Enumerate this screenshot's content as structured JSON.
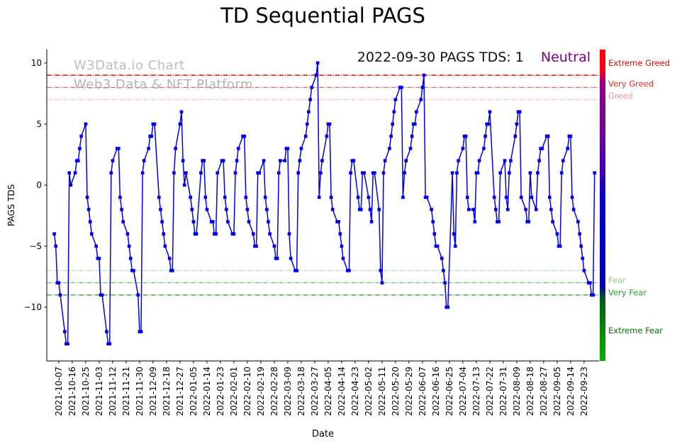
{
  "chart_data": {
    "type": "line",
    "title": "TD Sequential PAGS",
    "xlabel": "Date",
    "ylabel": "PAGS TDS",
    "annotation": {
      "text": "2022-09-30 PAGS TDS: 1",
      "sentiment": "Neutral",
      "sentiment_color": "#800080"
    },
    "watermark": {
      "line1": "W3Data.io Chart",
      "line2": "Web3 Data & NFT Platform"
    },
    "ylim": [
      -14.4,
      11.1
    ],
    "xlim": [
      "2021-09-29",
      "2022-10-03"
    ],
    "y_ticks": [
      -10,
      -5,
      0,
      5,
      10
    ],
    "x_tick_labels": [
      "2021-10-07",
      "2021-10-16",
      "2021-10-25",
      "2021-11-03",
      "2021-11-12",
      "2021-11-21",
      "2021-11-30",
      "2021-12-09",
      "2021-12-18",
      "2021-12-27",
      "2022-01-05",
      "2022-01-14",
      "2022-01-23",
      "2022-02-01",
      "2022-02-10",
      "2022-02-19",
      "2022-02-28",
      "2022-03-09",
      "2022-03-18",
      "2022-03-27",
      "2022-04-05",
      "2022-04-14",
      "2022-04-23",
      "2022-05-02",
      "2022-05-11",
      "2022-05-20",
      "2022-05-29",
      "2022-06-07",
      "2022-06-16",
      "2022-06-25",
      "2022-07-04",
      "2022-07-13",
      "2022-07-22",
      "2022-07-31",
      "2022-08-09",
      "2022-08-18",
      "2022-08-27",
      "2022-09-05",
      "2022-09-14",
      "2022-09-23"
    ],
    "series": {
      "name": "PAGS TDS",
      "color": "#0000ee",
      "marker": "square",
      "start_date": "2021-10-04",
      "frequency": "weekdays",
      "values": [
        -4,
        -5,
        -8,
        -8,
        -9,
        -12,
        -13,
        -13,
        1,
        0,
        1,
        2,
        2,
        3,
        4,
        5,
        -1,
        -2,
        -3,
        -4,
        -5,
        -6,
        -6,
        -9,
        -9,
        -12,
        -13,
        -13,
        1,
        2,
        3,
        3,
        -1,
        -2,
        -3,
        -4,
        -5,
        -6,
        -7,
        -7,
        -9,
        -12,
        -12,
        1,
        2,
        3,
        4,
        4,
        5,
        5,
        -1,
        -2,
        -3,
        -4,
        -5,
        -6,
        -7,
        -7,
        1,
        3,
        5,
        6,
        2,
        0,
        1,
        -1,
        -2,
        -3,
        -4,
        -4,
        1,
        2,
        2,
        -1,
        -2,
        -3,
        -3,
        -4,
        -4,
        1,
        2,
        2,
        -1,
        -2,
        -3,
        -4,
        -4,
        1,
        2,
        3,
        4,
        4,
        -1,
        -2,
        -3,
        -4,
        -5,
        -5,
        1,
        1,
        2,
        -1,
        -2,
        -3,
        -4,
        -5,
        -6,
        -6,
        1,
        2,
        2,
        3,
        3,
        -4,
        -6,
        -7,
        -7,
        1,
        2,
        3,
        4,
        5,
        6,
        7,
        8,
        9,
        10,
        -1,
        1,
        2,
        4,
        5,
        5,
        -1,
        -2,
        -3,
        -3,
        -4,
        -5,
        -6,
        -7,
        -7,
        1,
        2,
        2,
        -1,
        -2,
        -2,
        1,
        1,
        -1,
        -2,
        -3,
        1,
        1,
        -2,
        -7,
        -8,
        1,
        2,
        3,
        4,
        5,
        6,
        7,
        8,
        8,
        -1,
        1,
        2,
        3,
        4,
        5,
        5,
        6,
        7,
        8,
        9,
        -1,
        -1,
        -2,
        -3,
        -4,
        -5,
        -5,
        -6,
        -7,
        -8,
        -10,
        -10,
        1,
        -4,
        -5,
        1,
        2,
        3,
        4,
        4,
        -1,
        -2,
        -2,
        -3,
        1,
        1,
        2,
        3,
        4,
        5,
        5,
        6,
        -1,
        -2,
        -3,
        -3,
        1,
        2,
        -1,
        -2,
        1,
        2,
        4,
        5,
        6,
        6,
        -1,
        -2,
        -3,
        -3,
        1,
        -1,
        -2,
        1,
        2,
        3,
        3,
        4,
        4,
        -1,
        -2,
        -3,
        -4,
        -5,
        -5,
        1,
        2,
        3,
        4,
        4,
        -1,
        -2,
        -3,
        -4,
        -5,
        -6,
        -7,
        -8,
        -8,
        -9,
        -9,
        1
      ]
    },
    "zones": [
      {
        "label": "Extreme Greed",
        "line_value": 9,
        "label_value": 10.0,
        "line_color": "#ff0000",
        "label_color": "#ee0000",
        "line_width": 1.5
      },
      {
        "label": "Very Greed",
        "line_value": 8,
        "label_value": 8.3,
        "line_color": "#ff4d4d",
        "label_color": "#e63030",
        "line_width": 1
      },
      {
        "label": "Greed",
        "line_value": 7,
        "label_value": 7.3,
        "line_color": "#ffb0b0",
        "label_color": "#f49595",
        "line_width": 1
      },
      {
        "label": "Fear",
        "line_value": -7,
        "label_value": -7.8,
        "line_color": "#a9d9a9",
        "label_color": "#8fd18f",
        "line_width": 1
      },
      {
        "label": "Very Fear",
        "line_value": -8,
        "label_value": -8.8,
        "line_color": "#55aa55",
        "label_color": "#2f9e2f",
        "line_width": 1
      },
      {
        "label": "Extreme Fear",
        "line_value": -9,
        "label_value": -11.9,
        "line_color": "#1a7a1a",
        "label_color": "#007700",
        "line_width": 1.2
      }
    ],
    "sentiment_colorbar": {
      "stops": [
        [
          0.0,
          "#ff0000"
        ],
        [
          0.07,
          "#f00020"
        ],
        [
          0.11,
          "#90008e"
        ],
        [
          0.3,
          "#6b0097"
        ],
        [
          0.4,
          "#3b00b0"
        ],
        [
          0.46,
          "#0b00c0"
        ],
        [
          0.6,
          "#0000bb"
        ],
        [
          0.76,
          "#0000ad"
        ],
        [
          0.8,
          "#005c1a"
        ],
        [
          0.86,
          "#007a00"
        ],
        [
          1.0,
          "#00b000"
        ]
      ]
    }
  }
}
